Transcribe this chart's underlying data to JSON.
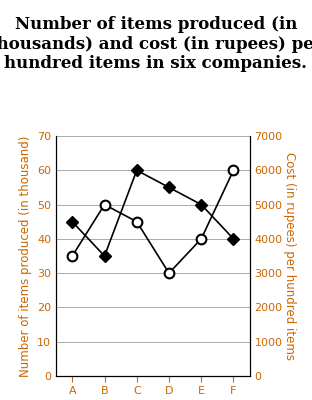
{
  "title": "Number of items produced (in\nthousands) and cost (in rupees) per\nhundred items in six companies.",
  "companies": [
    "A",
    "B",
    "C",
    "D",
    "E",
    "F"
  ],
  "items_produced": [
    45,
    35,
    60,
    55,
    50,
    40
  ],
  "cost_per_hundred": [
    3500,
    5000,
    4500,
    3000,
    4000,
    6000
  ],
  "left_ylim": [
    0,
    70
  ],
  "right_ylim": [
    0,
    7000
  ],
  "left_yticks": [
    0,
    10,
    20,
    30,
    40,
    50,
    60,
    70
  ],
  "right_yticks": [
    0,
    1000,
    2000,
    3000,
    4000,
    5000,
    6000,
    7000
  ],
  "left_ylabel": "Number of items produced (in thousand)",
  "right_ylabel": "Cost (in rupees) per hundred items",
  "filled_color": "#000000",
  "open_color": "#ffffff",
  "line_color": "#000000",
  "axis_label_color": "#cc6600",
  "tick_color": "#cc6600",
  "background_color": "#ffffff",
  "grid_color": "#aaaaaa",
  "title_fontsize": 12,
  "label_fontsize": 8.5,
  "tick_fontsize": 8
}
